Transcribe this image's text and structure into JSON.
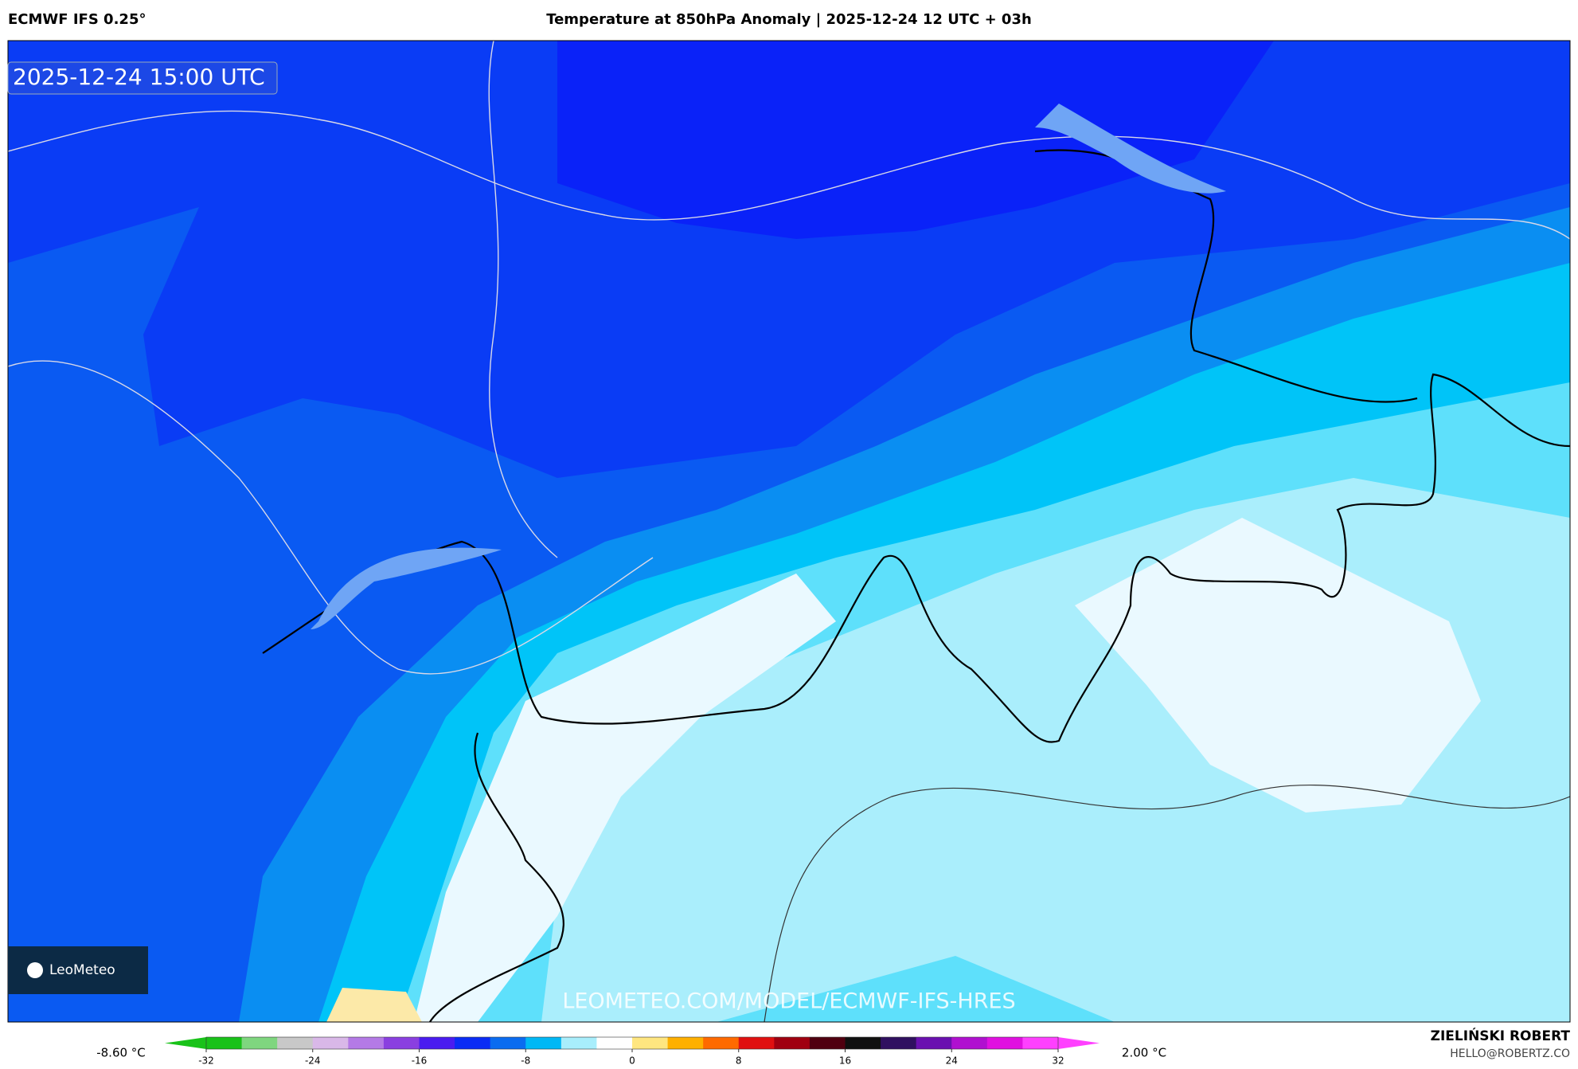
{
  "header": {
    "model": "ECMWF IFS 0.25°",
    "title": "Temperature at 850hPa Anomaly | 2025-12-24 12 UTC + 03h"
  },
  "map": {
    "valid_time": "2025-12-24 15:00 UTC",
    "logo": "LeoMeteo",
    "watermark": "LEOMETEO.COM/MODEL/ECMWF-IFS-HRES"
  },
  "colorbar": {
    "min_label": "-8.60 °C",
    "max_label": "2.00 °C",
    "range": [
      -32,
      32
    ],
    "ticks": [
      -32,
      -24,
      -16,
      -8,
      0,
      8,
      16,
      24,
      32
    ],
    "colors": [
      "#19c219",
      "#7fd67f",
      "#c8c8c8",
      "#d9b8e8",
      "#b47ae6",
      "#8a3fe0",
      "#4a1cf0",
      "#0a2cf5",
      "#0a6cf0",
      "#00b8f5",
      "#a8eefc",
      "#ffffff",
      "#ffe680",
      "#ffb000",
      "#ff6a00",
      "#e01010",
      "#a00010",
      "#500010",
      "#101010",
      "#301060",
      "#6a10b0",
      "#b010d0",
      "#e010e0",
      "#ff40ff"
    ]
  },
  "credit": {
    "author": "ZIELIŃSKI ROBERT",
    "contact": "HELLO@ROBERTZ.CO"
  }
}
